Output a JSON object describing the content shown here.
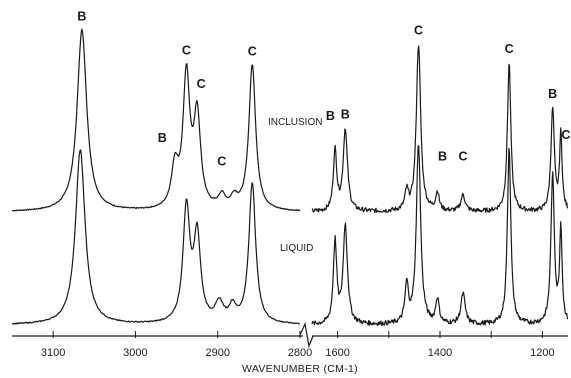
{
  "chart_data": {
    "type": "line",
    "xlabel": "WAVENUMBER (CM-1)",
    "axis_break_between": [
      2800,
      1650
    ],
    "panels": [
      {
        "name": "high",
        "x_range": [
          3150,
          2800
        ],
        "ticks": [
          3100,
          3000,
          2900,
          2800
        ]
      },
      {
        "name": "low",
        "x_range": [
          1650,
          1150
        ],
        "ticks": [
          1600,
          1500,
          1400,
          1300,
          1200
        ],
        "tick_labels": [
          1600,
          1400,
          1200
        ]
      }
    ],
    "series": [
      {
        "name": "INCLUSION",
        "high_peaks": [
          {
            "x": 3065,
            "h": 1.0,
            "w": 7
          },
          {
            "x": 2952,
            "h": 0.22,
            "w": 5
          },
          {
            "x": 2938,
            "h": 0.72,
            "w": 5
          },
          {
            "x": 2925,
            "h": 0.5,
            "w": 5
          },
          {
            "x": 2895,
            "h": 0.07,
            "w": 5
          },
          {
            "x": 2880,
            "h": 0.06,
            "w": 5
          },
          {
            "x": 2858,
            "h": 0.8,
            "w": 5
          }
        ],
        "low_peaks": [
          {
            "x": 1605,
            "h": 0.33,
            "w": 4
          },
          {
            "x": 1585,
            "h": 0.45,
            "w": 5
          },
          {
            "x": 1465,
            "h": 0.1,
            "w": 4
          },
          {
            "x": 1442,
            "h": 0.92,
            "w": 5
          },
          {
            "x": 1405,
            "h": 0.1,
            "w": 4
          },
          {
            "x": 1355,
            "h": 0.09,
            "w": 5
          },
          {
            "x": 1265,
            "h": 0.82,
            "w": 4
          },
          {
            "x": 1180,
            "h": 0.56,
            "w": 4
          },
          {
            "x": 1164,
            "h": 0.42,
            "w": 3
          }
        ]
      },
      {
        "name": "LIQUID",
        "high_peaks": [
          {
            "x": 3067,
            "h": 0.92,
            "w": 7
          },
          {
            "x": 2938,
            "h": 0.6,
            "w": 5
          },
          {
            "x": 2925,
            "h": 0.45,
            "w": 5
          },
          {
            "x": 2898,
            "h": 0.1,
            "w": 6
          },
          {
            "x": 2882,
            "h": 0.08,
            "w": 5
          },
          {
            "x": 2858,
            "h": 0.74,
            "w": 5
          }
        ],
        "low_peaks": [
          {
            "x": 1605,
            "h": 0.43,
            "w": 4
          },
          {
            "x": 1585,
            "h": 0.52,
            "w": 5
          },
          {
            "x": 1465,
            "h": 0.2,
            "w": 4
          },
          {
            "x": 1442,
            "h": 0.95,
            "w": 5
          },
          {
            "x": 1405,
            "h": 0.13,
            "w": 4
          },
          {
            "x": 1355,
            "h": 0.16,
            "w": 5
          },
          {
            "x": 1265,
            "h": 0.94,
            "w": 4
          },
          {
            "x": 1180,
            "h": 0.78,
            "w": 4
          },
          {
            "x": 1164,
            "h": 0.5,
            "w": 3
          }
        ]
      }
    ],
    "peak_labels": [
      {
        "text": "B",
        "x": 3065,
        "panel": "high"
      },
      {
        "text": "C",
        "x": 2938,
        "panel": "high"
      },
      {
        "text": "C",
        "x": 2925,
        "panel": "high"
      },
      {
        "text": "B",
        "x": 2960,
        "panel": "high"
      },
      {
        "text": "C",
        "x": 2895,
        "panel": "high"
      },
      {
        "text": "C",
        "x": 2858,
        "panel": "high"
      },
      {
        "text": "B",
        "x": 1620,
        "panel": "low"
      },
      {
        "text": "B",
        "x": 1585,
        "panel": "low"
      },
      {
        "text": "C",
        "x": 1442,
        "panel": "low"
      },
      {
        "text": "B",
        "x": 1403,
        "panel": "low"
      },
      {
        "text": "C",
        "x": 1355,
        "panel": "low"
      },
      {
        "text": "C",
        "x": 1265,
        "panel": "low"
      },
      {
        "text": "B",
        "x": 1180,
        "panel": "low"
      },
      {
        "text": "C",
        "x": 1162,
        "panel": "low"
      }
    ]
  }
}
